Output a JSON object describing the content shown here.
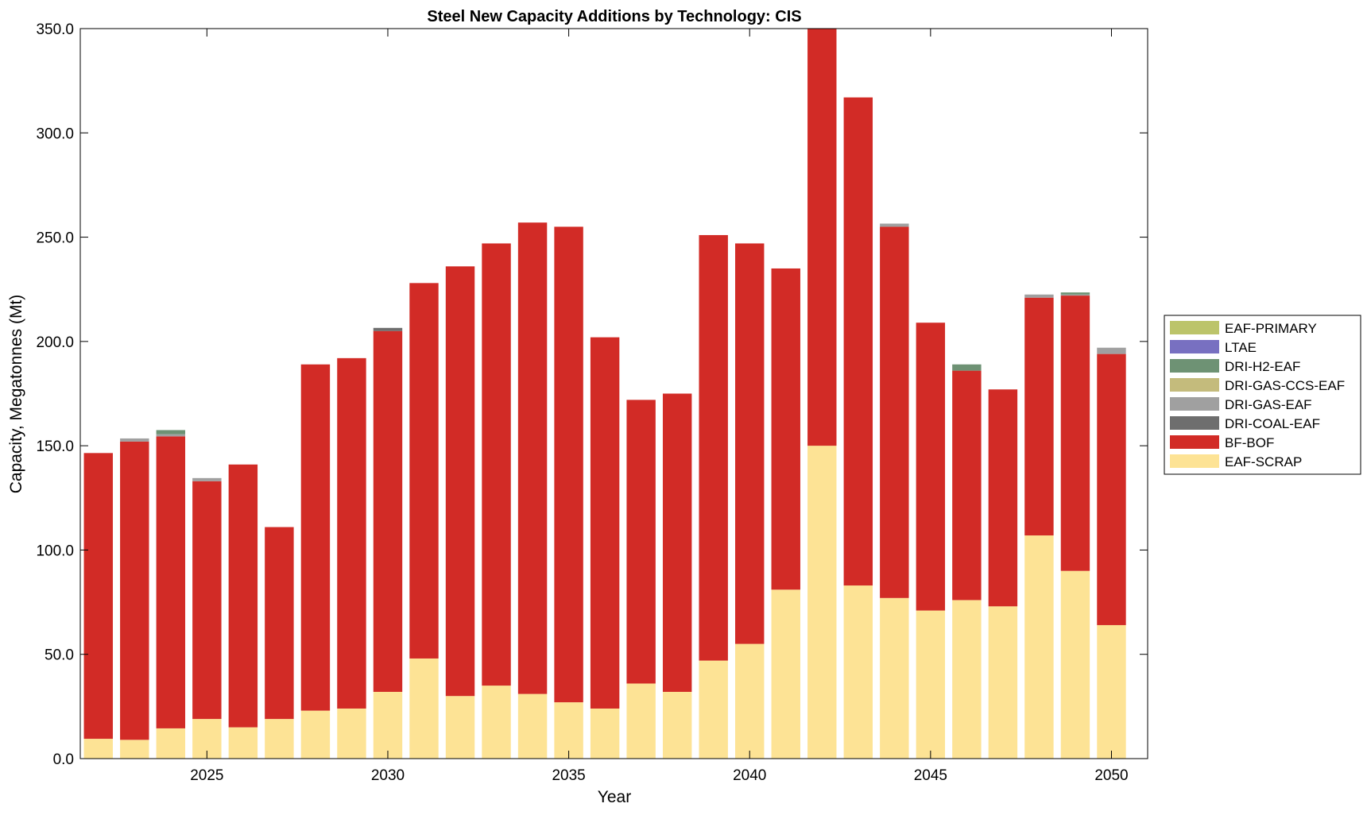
{
  "chart_data": {
    "type": "bar",
    "stacked": true,
    "title": "Steel New Capacity Additions by Technology: CIS",
    "xlabel": "Year",
    "ylabel": "Capacity, Megatonnes (Mt)",
    "ylim": [
      0,
      350
    ],
    "xlim": [
      2021.5,
      2051
    ],
    "y_ticks": [
      "0.0",
      "50.0",
      "100.0",
      "150.0",
      "200.0",
      "250.0",
      "300.0",
      "350.0"
    ],
    "x_ticks": [
      "2025",
      "2030",
      "2035",
      "2040",
      "2045",
      "2050"
    ],
    "grid": false,
    "legend_position": "right",
    "x": [
      2022,
      2023,
      2024,
      2025,
      2026,
      2027,
      2028,
      2029,
      2030,
      2031,
      2032,
      2033,
      2034,
      2035,
      2036,
      2037,
      2038,
      2039,
      2040,
      2041,
      2042,
      2043,
      2044,
      2045,
      2046,
      2047,
      2048,
      2049,
      2050
    ],
    "series": [
      {
        "name": "EAF-SCRAP",
        "color": "#fde395",
        "values": [
          9.5,
          9,
          14.5,
          19,
          15,
          19,
          23,
          24,
          32,
          48,
          30,
          35,
          31,
          27,
          24,
          36,
          32,
          47,
          55,
          81,
          150,
          83,
          77,
          71,
          76,
          73,
          107,
          90,
          64
        ]
      },
      {
        "name": "BF-BOF",
        "color": "#d22b26",
        "values": [
          137,
          143,
          140,
          114,
          126,
          92,
          166,
          168,
          173,
          180,
          206,
          212,
          226,
          228,
          178,
          136,
          143,
          204,
          192,
          154,
          200,
          234,
          178,
          138,
          110,
          104,
          114,
          132,
          130
        ]
      },
      {
        "name": "DRI-COAL-EAF",
        "color": "#6e6e6e",
        "values": [
          0,
          0,
          0,
          0,
          0,
          0,
          0,
          0,
          1.5,
          0,
          0,
          0,
          0,
          0,
          0,
          0,
          0,
          0,
          0,
          0,
          0,
          0,
          0,
          0,
          0,
          0,
          0,
          0,
          0
        ]
      },
      {
        "name": "DRI-GAS-EAF",
        "color": "#a0a0a0",
        "values": [
          0,
          1.5,
          1,
          1.5,
          0,
          0,
          0,
          0,
          0,
          0,
          0,
          0,
          0,
          0,
          0,
          0,
          0,
          0,
          0,
          0,
          0,
          0,
          1.5,
          0,
          0,
          0,
          1.5,
          0.5,
          3
        ]
      },
      {
        "name": "DRI-GAS-CCS-EAF",
        "color": "#c4bb7c",
        "values": [
          0,
          0,
          0,
          0,
          0,
          0,
          0,
          0,
          0,
          0,
          0,
          0,
          0,
          0,
          0,
          0,
          0,
          0,
          0,
          0,
          0,
          0,
          0,
          0,
          0,
          0,
          0,
          0,
          0
        ]
      },
      {
        "name": "DRI-H2-EAF",
        "color": "#6e9274",
        "values": [
          0,
          0,
          2,
          0,
          0,
          0,
          0,
          0,
          0,
          0,
          0,
          0,
          0,
          0,
          0,
          0,
          0,
          0,
          0,
          0,
          0,
          0,
          0,
          0,
          3,
          0,
          0,
          1,
          0
        ]
      },
      {
        "name": "LTAE",
        "color": "#7870c1",
        "values": [
          0,
          0,
          0,
          0,
          0,
          0,
          0,
          0,
          0,
          0,
          0,
          0,
          0,
          0,
          0,
          0,
          0,
          0,
          0,
          0,
          0,
          0,
          0,
          0,
          0,
          0,
          0,
          0,
          0
        ]
      },
      {
        "name": "EAF-PRIMARY",
        "color": "#bcc46a",
        "values": [
          0,
          0,
          0,
          0,
          0,
          0,
          0,
          0,
          0,
          0,
          0,
          0,
          0,
          0,
          0,
          0,
          0,
          0,
          0,
          0,
          0,
          0,
          0,
          0,
          0,
          0,
          0,
          0,
          0
        ]
      }
    ],
    "legend_order": [
      "EAF-PRIMARY",
      "LTAE",
      "DRI-H2-EAF",
      "DRI-GAS-CCS-EAF",
      "DRI-GAS-EAF",
      "DRI-COAL-EAF",
      "BF-BOF",
      "EAF-SCRAP"
    ]
  }
}
